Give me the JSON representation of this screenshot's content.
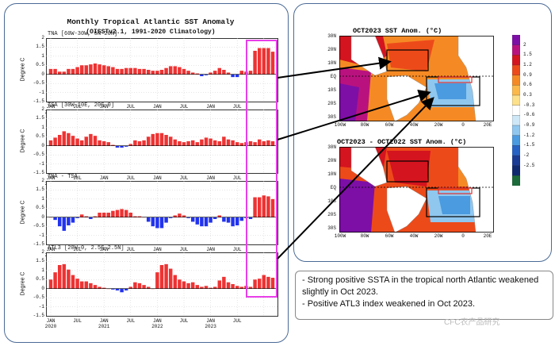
{
  "left_panel": {
    "title": "Monthly Tropical Atlantic SST Anomaly",
    "subtitle": "(OISSTv2.1, 1991-2020 Climatology)",
    "y_axis_label": "Degree C",
    "y_ticks": [
      "2",
      "1.5",
      "1",
      "0.5",
      "0",
      "-0.5",
      "-1",
      "-1.5"
    ],
    "x_ticks": [
      {
        "month": "JAN",
        "year": "2020"
      },
      {
        "month": "JUL",
        "year": ""
      },
      {
        "month": "JAN",
        "year": "2021"
      },
      {
        "month": "JUL",
        "year": ""
      },
      {
        "month": "JAN",
        "year": "2022"
      },
      {
        "month": "JUL",
        "year": ""
      },
      {
        "month": "JAN",
        "year": "2023"
      },
      {
        "month": "JUL",
        "year": ""
      }
    ]
  },
  "chart_data": [
    {
      "type": "bar",
      "title": "TNA [60W-30W, 5N-20N]",
      "ylabel": "Degree C",
      "ylim": [
        -1.5,
        2.0
      ],
      "x_start": "JAN 2020",
      "values": [
        0.3,
        0.3,
        0.15,
        0.15,
        0.3,
        0.3,
        0.4,
        0.5,
        0.5,
        0.55,
        0.6,
        0.55,
        0.5,
        0.45,
        0.4,
        0.3,
        0.3,
        0.35,
        0.35,
        0.35,
        0.3,
        0.3,
        0.25,
        0.2,
        0.2,
        0.25,
        0.35,
        0.45,
        0.45,
        0.4,
        0.3,
        0.2,
        0.1,
        0.05,
        -0.1,
        -0.05,
        0.1,
        0.2,
        0.35,
        0.25,
        0.1,
        -0.15,
        -0.15,
        0.2,
        0.15,
        0.2,
        1.3,
        1.45,
        1.45,
        1.45,
        1.25
      ]
    },
    {
      "type": "bar",
      "title": "TSA [30W-10E, 20S-0]",
      "ylabel": "Degree C",
      "ylim": [
        -1.5,
        2.0
      ],
      "x_start": "JAN 2020",
      "values": [
        0.3,
        0.45,
        0.6,
        0.8,
        0.7,
        0.55,
        0.4,
        0.3,
        0.5,
        0.65,
        0.55,
        0.3,
        0.25,
        0.2,
        0.05,
        -0.1,
        -0.1,
        -0.05,
        0.1,
        0.3,
        0.25,
        0.3,
        0.5,
        0.65,
        0.7,
        0.7,
        0.6,
        0.5,
        0.35,
        0.25,
        0.2,
        0.25,
        0.3,
        0.2,
        0.35,
        0.45,
        0.4,
        0.3,
        0.25,
        0.5,
        0.35,
        0.3,
        0.2,
        0.15,
        0.2,
        0.25,
        0.2,
        0.35,
        0.25,
        0.3,
        0.25
      ]
    },
    {
      "type": "bar",
      "title": "TNA - TSA",
      "ylabel": "Degree C",
      "ylim": [
        -1.5,
        2.0
      ],
      "x_start": "JAN 2020",
      "values": [
        0.0,
        -0.15,
        -0.5,
        -0.75,
        -0.45,
        -0.3,
        -0.05,
        0.15,
        0.05,
        -0.1,
        0.05,
        0.25,
        0.25,
        0.25,
        0.35,
        0.4,
        0.45,
        0.4,
        0.25,
        0.05,
        0.05,
        0.0,
        -0.25,
        -0.5,
        -0.6,
        -0.6,
        -0.3,
        -0.05,
        0.1,
        0.2,
        0.1,
        -0.05,
        -0.25,
        -0.4,
        -0.5,
        -0.5,
        -0.3,
        -0.1,
        0.1,
        -0.25,
        -0.3,
        -0.5,
        -0.45,
        -0.2,
        -0.05,
        -0.1,
        1.1,
        1.1,
        1.2,
        1.15,
        1.0
      ]
    },
    {
      "type": "bar",
      "title": "ATL3 [20W-0, 2.5S-2.5N]",
      "ylabel": "Degree C",
      "ylim": [
        -1.5,
        2.0
      ],
      "x_start": "JAN 2020",
      "values": [
        0.5,
        0.9,
        1.3,
        1.35,
        1.05,
        0.75,
        0.55,
        0.4,
        0.4,
        0.3,
        0.2,
        0.1,
        0.05,
        0.0,
        -0.05,
        -0.1,
        -0.2,
        -0.1,
        0.1,
        0.35,
        0.3,
        0.2,
        0.1,
        0.0,
        0.9,
        1.3,
        1.35,
        1.1,
        0.75,
        0.5,
        0.4,
        0.3,
        0.35,
        0.2,
        0.1,
        0.15,
        0.05,
        0.1,
        0.45,
        0.65,
        0.35,
        0.25,
        0.15,
        0.1,
        0.15,
        0.1,
        0.5,
        0.55,
        0.75,
        0.65,
        0.6
      ]
    }
  ],
  "maps": {
    "top_title": "OCT2023 SST Anom. (°C)",
    "bottom_title": "OCT2023 - OCT2022 SST Anom. (°C)",
    "lat_labels": [
      "30N",
      "20N",
      "10N",
      "EQ",
      "10S",
      "20S",
      "30S"
    ],
    "lon_labels": [
      "100W",
      "80W",
      "60W",
      "40W",
      "20W",
      "0",
      "20E"
    ],
    "colorbar": [
      "2",
      "1.5",
      "1.2",
      "0.9",
      "0.6",
      "0.3",
      "-0.3",
      "-0.6",
      "-0.9",
      "-1.2",
      "-1.5",
      "-2",
      "-2.5"
    ],
    "colors": [
      "#7d0fa6",
      "#b9127f",
      "#d4141f",
      "#ed4a1a",
      "#f58a24",
      "#fbb94a",
      "#fde08a",
      "#ffffff",
      "#cfe8f7",
      "#8fc7ef",
      "#4a9be0",
      "#2763c4",
      "#1b3c94",
      "#0f2a6e",
      "#1c6b3a"
    ]
  },
  "notes": [
    "- Strong positive SSTA in the tropical north Atlantic weakened slightly in Oct 2023.",
    "- Positive ATL3 index weakened  in Oct 2023."
  ],
  "watermark": "CFC农产品研究"
}
